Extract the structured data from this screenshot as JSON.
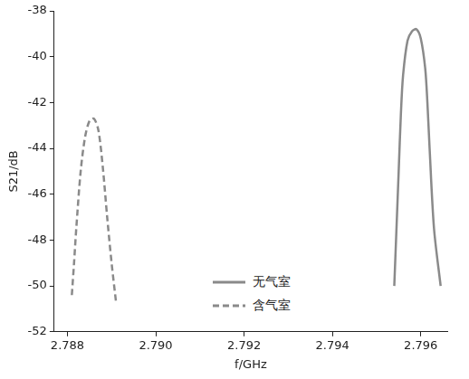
{
  "chart_data": {
    "type": "line",
    "x_label": "f/GHz",
    "y_label": "S21/dB",
    "xlim": [
      2.7877,
      2.7966
    ],
    "ylim": [
      -52,
      -38
    ],
    "xticks": [
      {
        "value": 2.788,
        "label": "2.788"
      },
      {
        "value": 2.79,
        "label": "2.790"
      },
      {
        "value": 2.792,
        "label": "2.792"
      },
      {
        "value": 2.794,
        "label": "2.794"
      },
      {
        "value": 2.796,
        "label": "2.796"
      }
    ],
    "yticks": [
      -52,
      -50,
      -48,
      -46,
      -44,
      -42,
      -40,
      -38
    ],
    "grid": false,
    "legend": "lower center",
    "series": [
      {
        "name": "无气室",
        "color": "#8a8a8a",
        "line_style": "solid",
        "x": [
          2.7954,
          2.79545,
          2.7955,
          2.79555,
          2.7956,
          2.7957,
          2.7958,
          2.7959,
          2.796,
          2.7961,
          2.79615,
          2.7962,
          2.7963,
          2.79645
        ],
        "values": [
          -50.0,
          -47.5,
          -45.0,
          -42.5,
          -40.8,
          -39.3,
          -38.9,
          -38.8,
          -39.2,
          -40.5,
          -42.0,
          -44.0,
          -47.5,
          -50.0
        ]
      },
      {
        "name": "含气室",
        "color": "#8a8a8a",
        "line_style": "dashed",
        "x": [
          2.7881,
          2.78815,
          2.7882,
          2.7883,
          2.7884,
          2.7885,
          2.7886,
          2.7887,
          2.7888,
          2.7889,
          2.789,
          2.7891
        ],
        "values": [
          -50.4,
          -49.0,
          -47.5,
          -45.0,
          -43.5,
          -42.8,
          -42.7,
          -43.2,
          -44.8,
          -47.0,
          -49.0,
          -50.7
        ]
      }
    ]
  }
}
